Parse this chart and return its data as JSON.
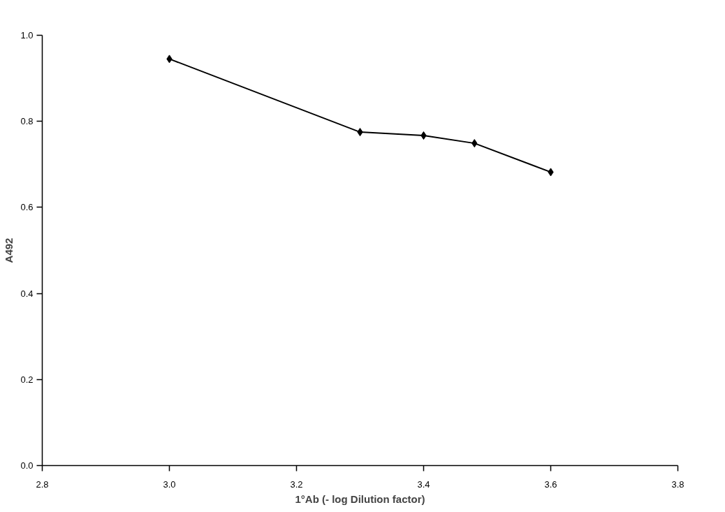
{
  "chart_data": {
    "type": "line",
    "xlabel": "1°Ab (- log Dilution factor)",
    "ylabel": "A492",
    "x": [
      3.0,
      3.3,
      3.4,
      3.48,
      3.6
    ],
    "series": [
      {
        "color": "#000000",
        "values": [
          0.945,
          0.775,
          0.767,
          0.749,
          0.682
        ]
      }
    ],
    "xlim": [
      2.8,
      3.8
    ],
    "xticks": [
      {
        "value": 2.8,
        "label": "2.8"
      },
      {
        "value": 3.0,
        "label": "3.0"
      },
      {
        "value": 3.2,
        "label": "3.2"
      },
      {
        "value": 3.4,
        "label": "3.4"
      },
      {
        "value": 3.6,
        "label": "3.6"
      },
      {
        "value": 3.8,
        "label": "3.8"
      }
    ],
    "ylim": [
      0,
      1.0
    ],
    "yticks": [
      {
        "value": 0,
        "label": "0.0"
      },
      {
        "value": 0.2,
        "label": "0.2"
      },
      {
        "value": 0.4,
        "label": "0.4"
      },
      {
        "value": 0.6,
        "label": "0.6"
      },
      {
        "value": 0.8,
        "label": "0.8"
      },
      {
        "value": 1.0,
        "label": "1.0"
      }
    ],
    "marker": "diamond",
    "line_style": "solid"
  }
}
